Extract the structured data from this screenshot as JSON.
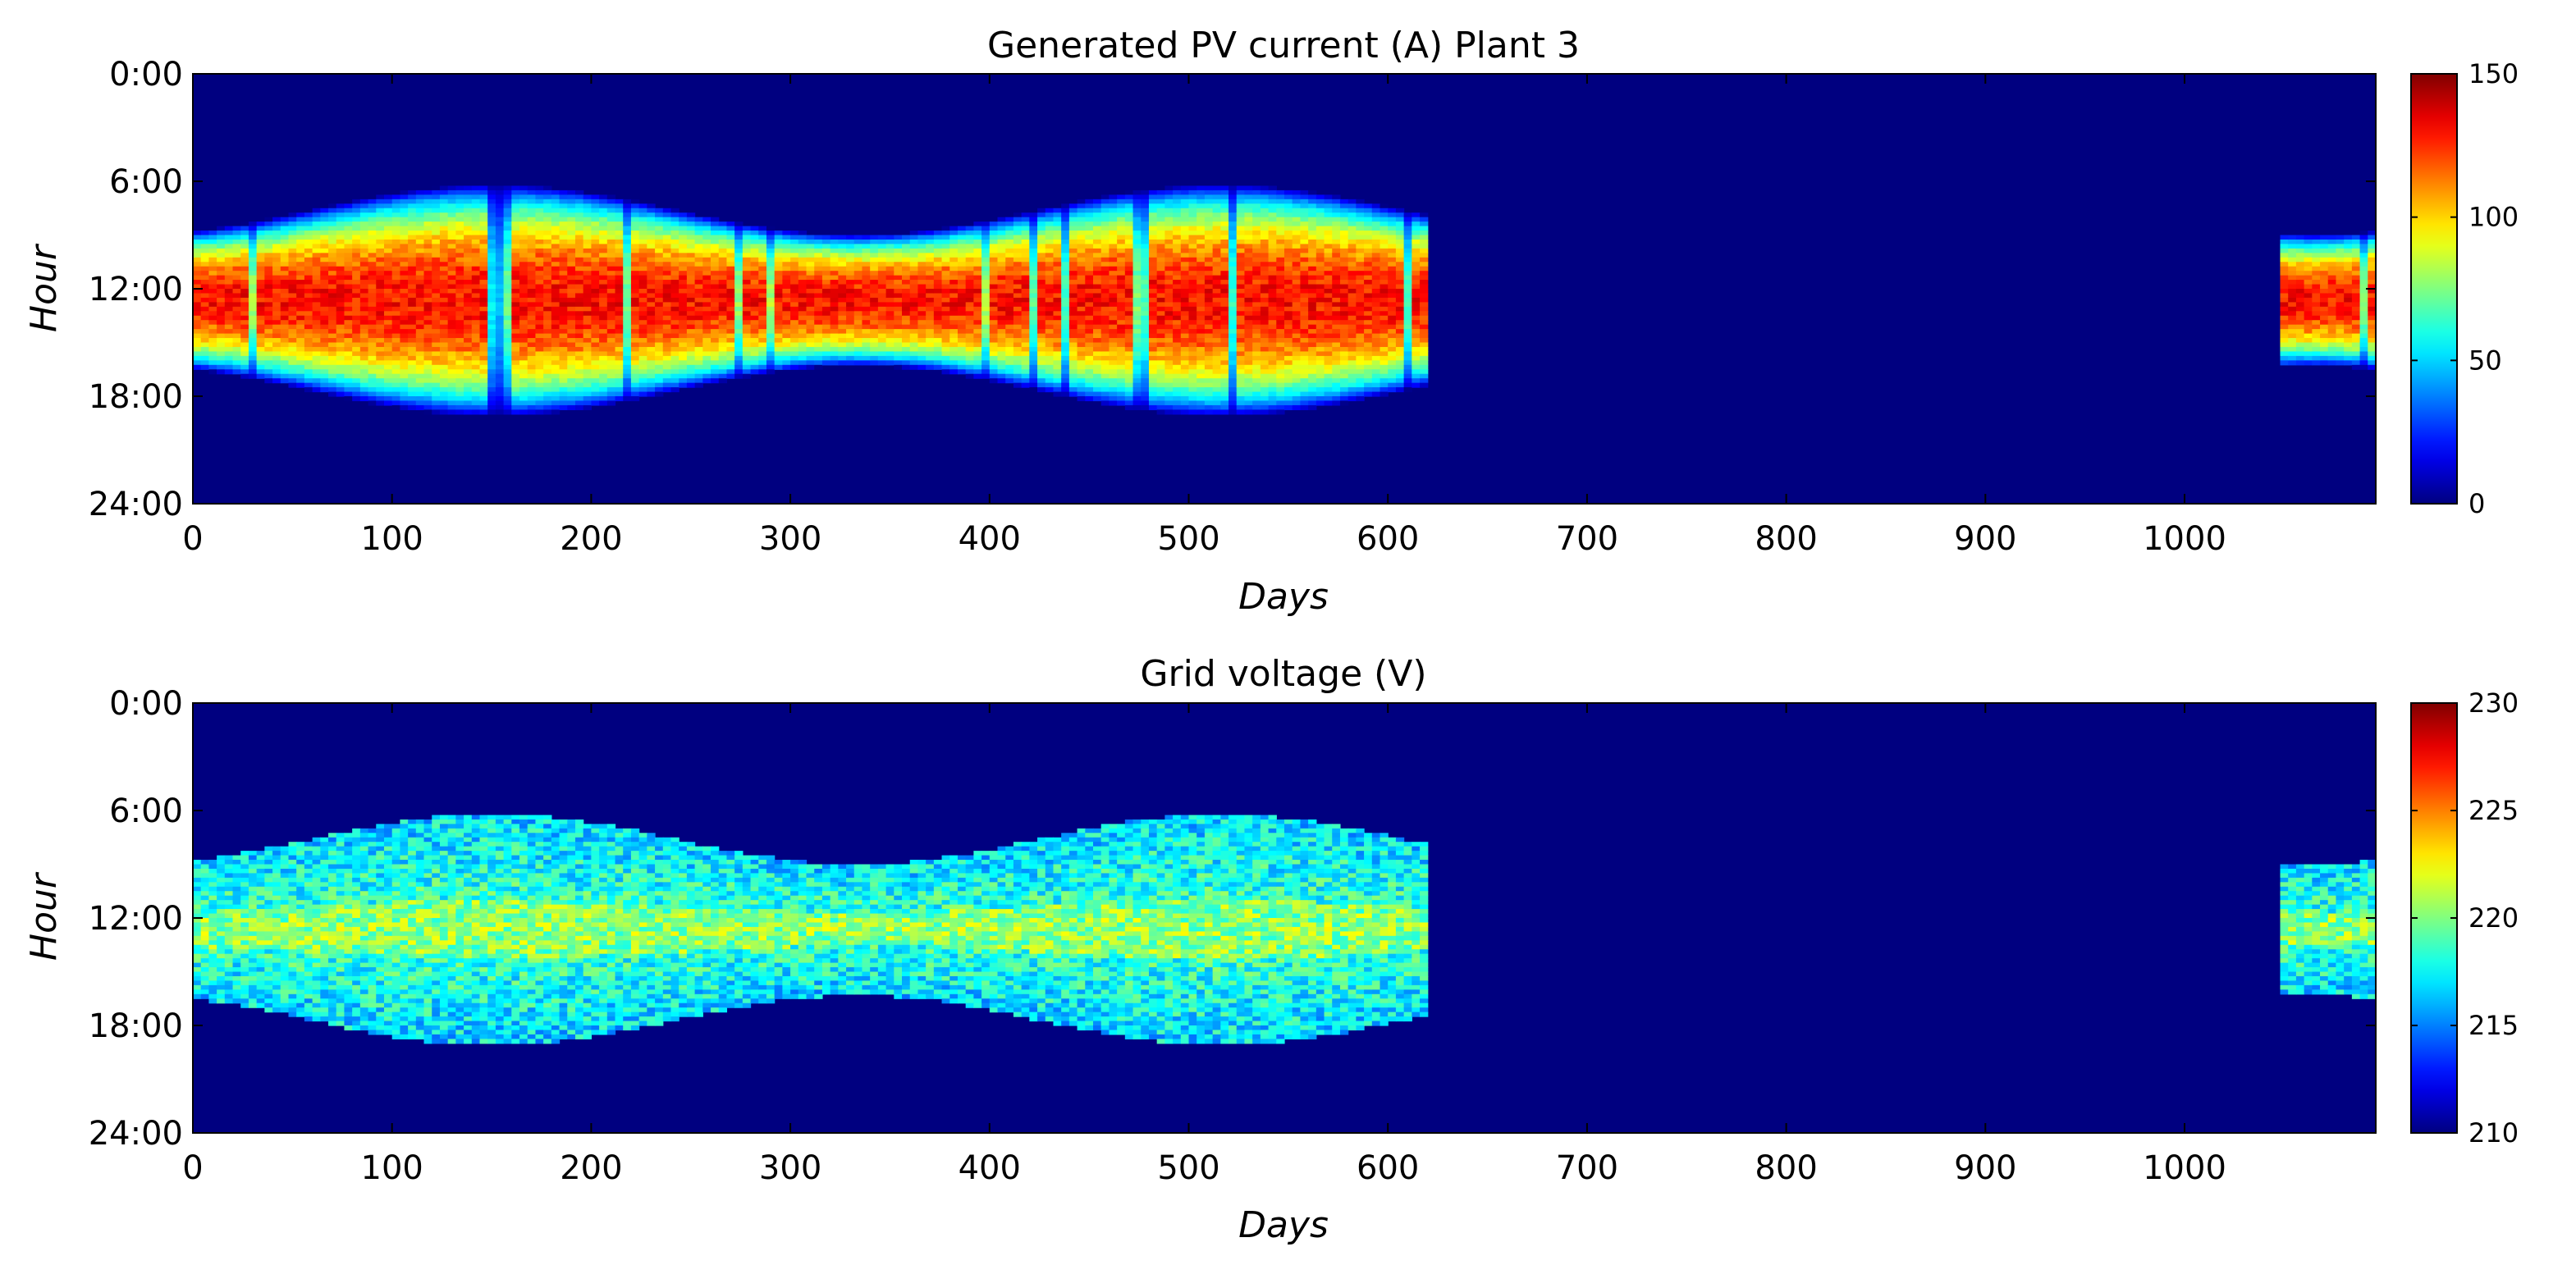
{
  "chart_data": [
    {
      "type": "heatmap",
      "title": "Generated PV current (A) Plant 3",
      "xlabel": "Days",
      "ylabel": "Hour",
      "xlim": [
        0,
        1096
      ],
      "x_ticks": [
        0,
        100,
        200,
        300,
        400,
        500,
        600,
        700,
        800,
        900,
        1000
      ],
      "y_ticks": [
        "0:00",
        "6:00",
        "12:00",
        "18:00",
        "24:00"
      ],
      "y_range_hours": [
        0,
        24
      ],
      "colorbar": {
        "min": 0,
        "max": 150,
        "ticks": [
          0,
          50,
          100,
          150
        ],
        "colormap": "jet"
      },
      "data_segments": [
        {
          "day_start": 0,
          "day_end": 620
        },
        {
          "day_start": 1048,
          "day_end": 1096
        }
      ],
      "peak_value_approx": 140
    },
    {
      "type": "heatmap",
      "title": "Grid voltage (V)",
      "xlabel": "Days",
      "ylabel": "Hour",
      "xlim": [
        0,
        1096
      ],
      "x_ticks": [
        0,
        100,
        200,
        300,
        400,
        500,
        600,
        700,
        800,
        900,
        1000
      ],
      "y_ticks": [
        "0:00",
        "6:00",
        "12:00",
        "18:00",
        "24:00"
      ],
      "y_range_hours": [
        0,
        24
      ],
      "colorbar": {
        "min": 210,
        "max": 230,
        "ticks": [
          210,
          215,
          220,
          225,
          230
        ],
        "colormap": "jet"
      },
      "data_segments": [
        {
          "day_start": 0,
          "day_end": 620
        },
        {
          "day_start": 1048,
          "day_end": 1096
        }
      ],
      "typical_value_approx": 219
    }
  ]
}
